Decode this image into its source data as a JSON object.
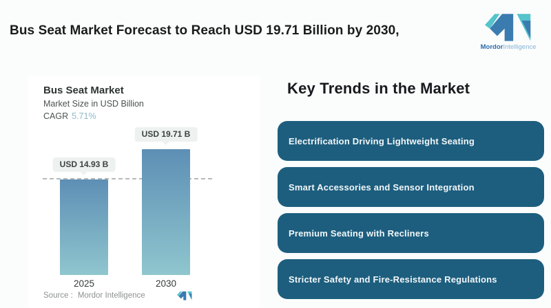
{
  "header": {
    "title": "Bus Seat Market Forecast to Reach USD 19.71 Billion by 2030,",
    "brand_bold": "Mordor",
    "brand_light": "Intelligence"
  },
  "chart": {
    "title": "Bus Seat Market",
    "subtitle": "Market Size in USD Billion",
    "cagr_label": "CAGR",
    "cagr_value": "5.71%",
    "source_label": "Source :",
    "source_value": "Mordor Intelligence"
  },
  "chart_data": {
    "type": "bar",
    "title": "Bus Seat Market",
    "ylabel": "Market Size in USD Billion",
    "cagr": "5.71%",
    "categories": [
      "2025",
      "2030"
    ],
    "values": [
      14.93,
      19.71
    ],
    "value_labels": [
      "USD 14.93 B",
      "USD 19.71 B"
    ],
    "reference_line_at": 14.93,
    "bar_gradient_top": "#5d8fb5",
    "bar_gradient_bottom": "#8fc6ce",
    "grid": false,
    "legend": false
  },
  "trends": {
    "heading": "Key Trends in the Market",
    "box_color": "#1d5e7e",
    "items": [
      "Electrification Driving Lightweight Seating",
      "Smart Accessories and Sensor Integration",
      "Premium Seating with Recliners",
      "Stricter Safety and Fire-Resistance Regulations"
    ]
  },
  "colors": {
    "accent_teal": "#55c4cc",
    "accent_blue": "#3a7cb0",
    "cagr_value": "#8fb9c6",
    "label_box_bg": "#edf1f0",
    "dashed_line": "#b6bab9"
  }
}
